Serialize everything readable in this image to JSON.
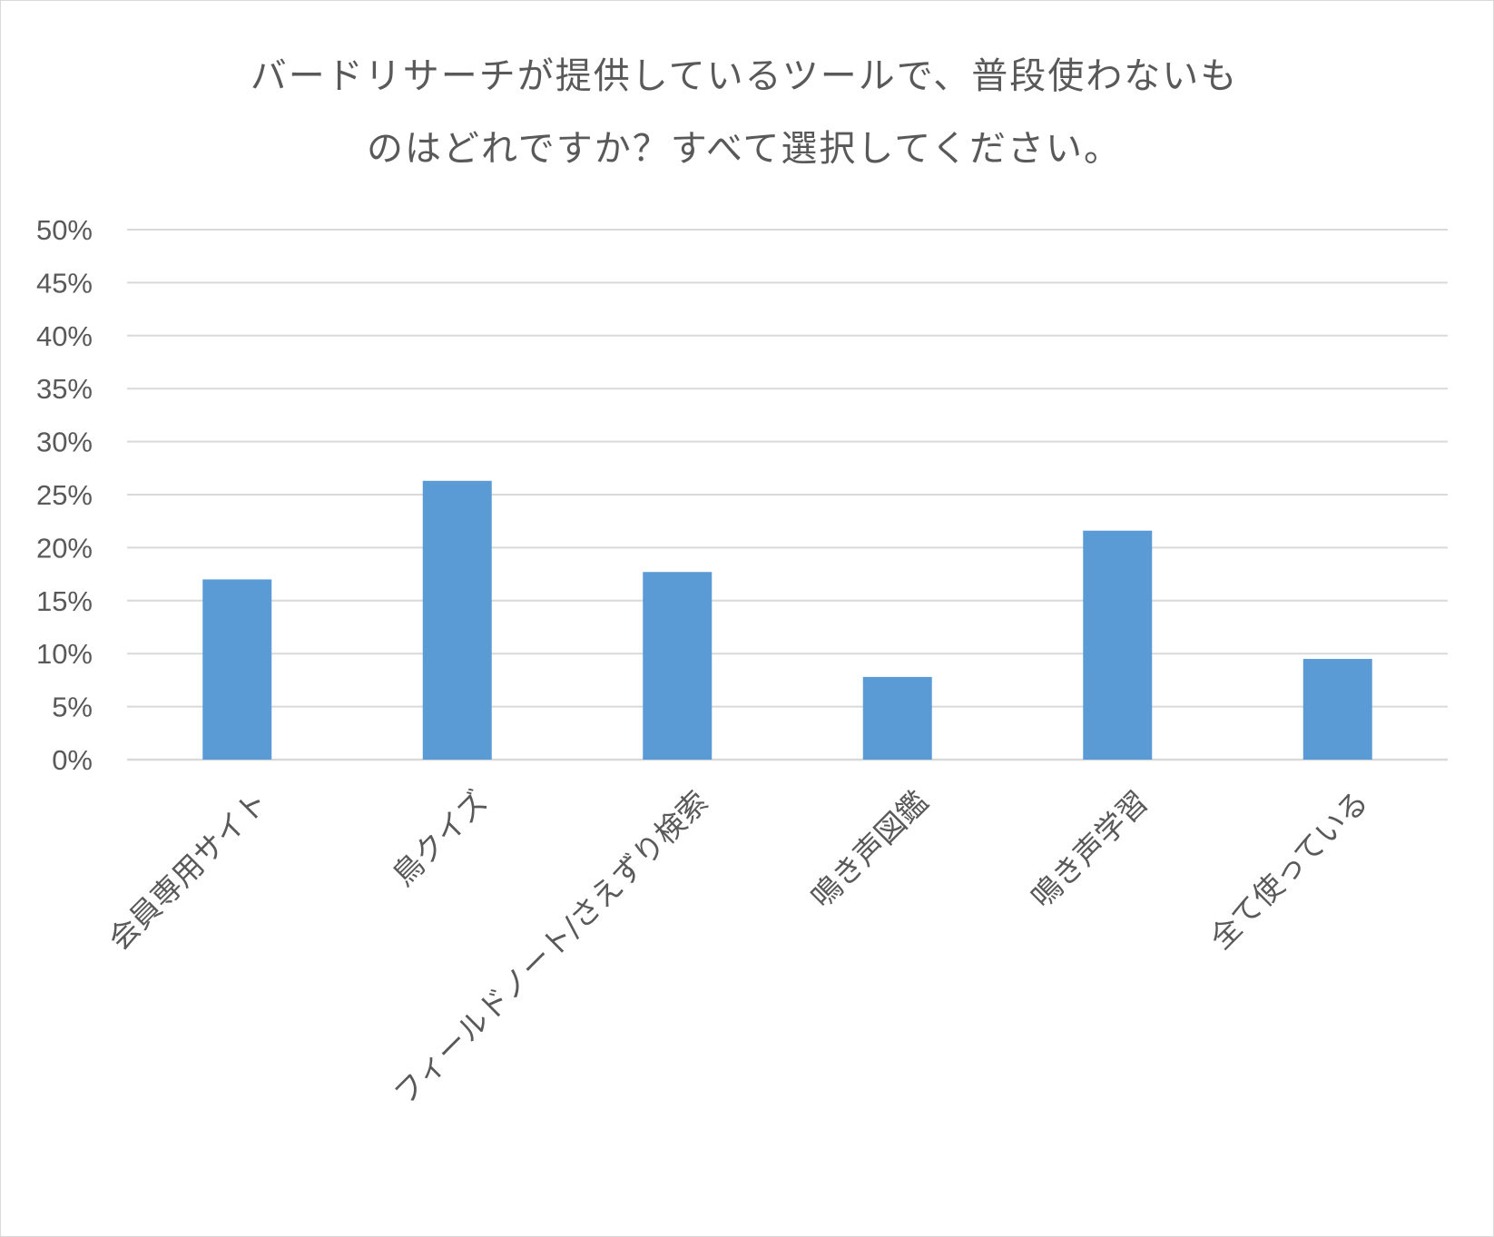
{
  "chart_data": {
    "type": "bar",
    "title_lines": [
      "バードリサーチが提供しているツールで、普段使わないも",
      "のはどれですか？すべて選択してください。"
    ],
    "categories": [
      "会員専用サイト",
      "鳥クイズ",
      "フィールドノート/さえずり検索",
      "鳴き声図鑑",
      "鳴き声学習",
      "全て使っている"
    ],
    "series": [
      {
        "values": [
          17.0,
          26.3,
          17.7,
          7.8,
          21.6,
          9.5
        ],
        "color": "#5b9bd5"
      }
    ],
    "y_ticks": [
      "0%",
      "5%",
      "10%",
      "15%",
      "20%",
      "25%",
      "30%",
      "35%",
      "40%",
      "45%",
      "50%"
    ],
    "ylim": [
      0,
      50
    ],
    "y_unit": "%",
    "grid": true,
    "legend": "none",
    "colors": {
      "bar": "#5b9bd5",
      "grid": "#d9d9d9",
      "text": "#595959"
    }
  }
}
